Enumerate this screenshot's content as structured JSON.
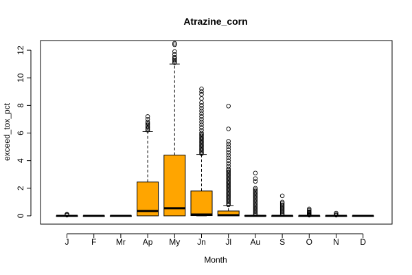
{
  "chart_data": {
    "type": "box",
    "title": "Atrazine_corn",
    "xlabel": "Month",
    "ylabel": "exceed_tox_pct",
    "ylim": [
      -0.6,
      12.7
    ],
    "yticks": [
      0,
      2,
      4,
      6,
      8,
      10,
      12
    ],
    "categories": [
      "J",
      "F",
      "Mr",
      "Ap",
      "My",
      "Jn",
      "Jl",
      "Au",
      "S",
      "O",
      "N",
      "D"
    ],
    "box_color": "#FFA500",
    "boxes": [
      {
        "month": "J",
        "min": 0,
        "q1": 0,
        "median": 0,
        "q3": 0,
        "max": 0,
        "outliers": [
          0.05,
          0.1,
          0.12
        ]
      },
      {
        "month": "F",
        "min": 0,
        "q1": 0,
        "median": 0,
        "q3": 0,
        "max": 0,
        "outliers": []
      },
      {
        "month": "Mr",
        "min": 0,
        "q1": 0,
        "median": 0,
        "q3": 0,
        "max": 0,
        "outliers": []
      },
      {
        "month": "Ap",
        "min": 0,
        "q1": 0,
        "median": 0.35,
        "q3": 2.45,
        "max": 6.1,
        "outliers": [
          6.2,
          6.3,
          6.4,
          6.5,
          6.6,
          6.7,
          6.8,
          7.0,
          7.2
        ]
      },
      {
        "month": "My",
        "min": 0,
        "q1": 0,
        "median": 0.55,
        "q3": 4.4,
        "max": 11.0,
        "outliers": [
          11.1,
          11.2,
          11.3,
          11.4,
          11.5,
          11.7,
          11.9,
          12.4,
          12.5
        ]
      },
      {
        "month": "Jn",
        "min": 0,
        "q1": 0.02,
        "median": 0.1,
        "q3": 1.8,
        "max": 4.45,
        "outliers": [
          4.5,
          4.6,
          4.7,
          4.8,
          4.9,
          5.0,
          5.1,
          5.2,
          5.3,
          5.4,
          5.5,
          5.6,
          5.7,
          5.8,
          5.9,
          6.0,
          6.2,
          6.4,
          6.6,
          6.8,
          7.0,
          7.2,
          7.4,
          7.6,
          7.8,
          8.0,
          8.2,
          8.5,
          8.8,
          9.0,
          9.2
        ]
      },
      {
        "month": "Jl",
        "min": 0,
        "q1": 0,
        "median": 0.05,
        "q3": 0.35,
        "max": 0.75,
        "outliers": [
          0.8,
          0.9,
          1.0,
          1.1,
          1.2,
          1.3,
          1.4,
          1.5,
          1.6,
          1.7,
          1.8,
          1.9,
          2.0,
          2.1,
          2.2,
          2.3,
          2.4,
          2.5,
          2.6,
          2.7,
          2.8,
          2.9,
          3.0,
          3.1,
          3.2,
          3.3,
          3.4,
          3.6,
          3.8,
          4.0,
          4.2,
          4.4,
          4.6,
          4.8,
          5.0,
          5.2,
          5.4,
          6.3,
          7.95
        ]
      },
      {
        "month": "Au",
        "min": 0,
        "q1": 0,
        "median": 0,
        "q3": 0.02,
        "max": 0.05,
        "outliers": [
          0.1,
          0.2,
          0.3,
          0.4,
          0.5,
          0.6,
          0.7,
          0.8,
          0.9,
          1.0,
          1.1,
          1.2,
          1.3,
          1.4,
          1.5,
          1.6,
          1.7,
          1.8,
          1.9,
          2.0,
          2.5,
          2.7,
          3.1
        ]
      },
      {
        "month": "S",
        "min": 0,
        "q1": 0,
        "median": 0,
        "q3": 0,
        "max": 0.02,
        "outliers": [
          0.1,
          0.2,
          0.3,
          0.4,
          0.5,
          0.6,
          0.7,
          0.8,
          0.9,
          1.0,
          1.45
        ]
      },
      {
        "month": "O",
        "min": 0,
        "q1": 0,
        "median": 0,
        "q3": 0,
        "max": 0,
        "outliers": [
          0.05,
          0.1,
          0.15,
          0.2,
          0.25,
          0.3,
          0.4,
          0.5
        ]
      },
      {
        "month": "N",
        "min": 0,
        "q1": 0,
        "median": 0,
        "q3": 0,
        "max": 0,
        "outliers": [
          0.05,
          0.1,
          0.2
        ]
      },
      {
        "month": "D",
        "min": 0,
        "q1": 0,
        "median": 0,
        "q3": 0,
        "max": 0,
        "outliers": []
      }
    ]
  }
}
